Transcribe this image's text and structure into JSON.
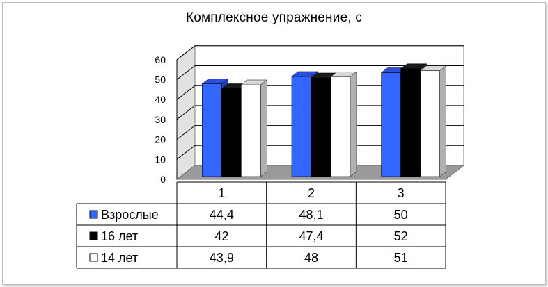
{
  "chart_data": {
    "type": "bar",
    "title": "Комплексное упражнение,  с",
    "categories": [
      "1",
      "2",
      "3"
    ],
    "series": [
      {
        "name": "Взрослые",
        "values": [
          44.4,
          48.1,
          50
        ],
        "labels": [
          "44,4",
          "48,1",
          "50"
        ],
        "color": "#3366ff"
      },
      {
        "name": "16 лет",
        "values": [
          42,
          47.4,
          52
        ],
        "labels": [
          "42",
          "47,4",
          "52"
        ],
        "color": "#000000"
      },
      {
        "name": "14 лет",
        "values": [
          43.9,
          48,
          51
        ],
        "labels": [
          "43,9",
          "48",
          "51"
        ],
        "color": "#ffffff"
      }
    ],
    "y_ticks": [
      "0",
      "10",
      "20",
      "30",
      "40",
      "50",
      "60"
    ],
    "ylim": [
      0,
      60
    ],
    "grid": true,
    "three_d": true,
    "legend": "data-table"
  }
}
